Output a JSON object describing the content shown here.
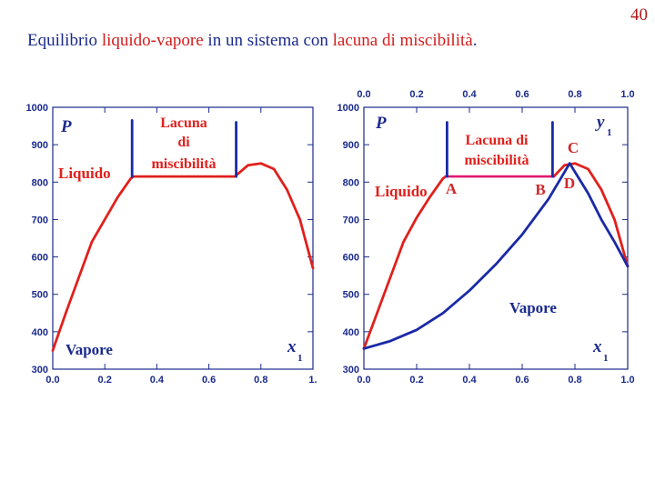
{
  "slide": {
    "page_number": "40",
    "title_parts": [
      "Equilibrio ",
      "liquido-vapore",
      " in un sistema con ",
      "lacuna di miscibilità",
      "."
    ]
  },
  "colors": {
    "text_blue": "#1a2a8c",
    "red": "#e0201c",
    "blue": "#1a2aa6",
    "magenta": "#e0186e",
    "phase_label_red": "#e0201c",
    "point_label_red": "#cc2a2a"
  },
  "chart_data": [
    {
      "type": "line",
      "yaxis_label": "P",
      "xaxis_label": "x1",
      "xlim": [
        0,
        1
      ],
      "ylim": [
        300,
        1000
      ],
      "x_ticks": [
        "0.0",
        "0.2",
        "0.4",
        "0.6",
        "0.8",
        "1."
      ],
      "y_ticks": [
        "1000",
        "900",
        "800",
        "700",
        "600",
        "500",
        "400",
        "300"
      ],
      "series": [
        {
          "color": "red",
          "points": [
            [
              0.0,
              350
            ],
            [
              0.05,
              450
            ],
            [
              0.1,
              545
            ],
            [
              0.15,
              640
            ],
            [
              0.2,
              700
            ],
            [
              0.25,
              760
            ],
            [
              0.3,
              810
            ],
            [
              0.31,
              815
            ],
            [
              0.7,
              815
            ],
            [
              0.75,
              845
            ],
            [
              0.8,
              850
            ],
            [
              0.85,
              835
            ],
            [
              0.9,
              780
            ],
            [
              0.95,
              700
            ],
            [
              1.0,
              570
            ]
          ]
        },
        {
          "color": "blue",
          "points": [
            [
              0.305,
              815
            ],
            [
              0.305,
              965
            ]
          ]
        },
        {
          "color": "blue",
          "points": [
            [
              0.705,
              815
            ],
            [
              0.705,
              960
            ]
          ]
        }
      ],
      "region_labels": [
        "Lacuna",
        "di",
        "miscibilità",
        "Liquido",
        "Vapore"
      ]
    },
    {
      "type": "line",
      "yaxis_label": "P",
      "xaxis_label": "x1",
      "top_axis_label": "y1",
      "xlim": [
        0,
        1
      ],
      "ylim": [
        300,
        1000
      ],
      "x_ticks": [
        "0.0",
        "0.2",
        "0.4",
        "0.6",
        "0.8",
        "1.0"
      ],
      "top_ticks": [
        "0.0",
        "0.2",
        "0.4",
        "0.6",
        "0.8",
        "1.0"
      ],
      "y_ticks": [
        "1000",
        "900",
        "800",
        "700",
        "600",
        "500",
        "400",
        "300"
      ],
      "series": [
        {
          "color": "red",
          "points": [
            [
              0.0,
              355
            ],
            [
              0.05,
              450
            ],
            [
              0.1,
              545
            ],
            [
              0.15,
              640
            ],
            [
              0.2,
              705
            ],
            [
              0.25,
              760
            ],
            [
              0.3,
              810
            ],
            [
              0.31,
              815
            ]
          ]
        },
        {
          "color": "red",
          "points": [
            [
              0.72,
              815
            ],
            [
              0.76,
              845
            ],
            [
              0.8,
              850
            ],
            [
              0.85,
              835
            ],
            [
              0.9,
              780
            ],
            [
              0.95,
              700
            ],
            [
              1.0,
              575
            ]
          ]
        },
        {
          "color": "magenta",
          "points": [
            [
              0.31,
              815
            ],
            [
              0.72,
              815
            ]
          ]
        },
        {
          "color": "blue",
          "points": [
            [
              0.0,
              355
            ],
            [
              0.1,
              375
            ],
            [
              0.2,
              405
            ],
            [
              0.3,
              450
            ],
            [
              0.4,
              510
            ],
            [
              0.5,
              580
            ],
            [
              0.6,
              660
            ],
            [
              0.7,
              755
            ],
            [
              0.78,
              850
            ]
          ]
        },
        {
          "color": "blue",
          "points": [
            [
              0.78,
              850
            ],
            [
              0.85,
              770
            ],
            [
              0.9,
              700
            ],
            [
              0.95,
              640
            ],
            [
              1.0,
              575
            ]
          ]
        },
        {
          "color": "blue",
          "points": [
            [
              0.315,
              815
            ],
            [
              0.315,
              960
            ]
          ]
        },
        {
          "color": "blue",
          "points": [
            [
              0.715,
              815
            ],
            [
              0.715,
              960
            ]
          ]
        }
      ],
      "region_labels": [
        "Lacuna di",
        "miscibilità",
        "Liquido",
        "Vapore"
      ],
      "point_labels": [
        "A",
        "B",
        "C",
        "D"
      ]
    }
  ]
}
